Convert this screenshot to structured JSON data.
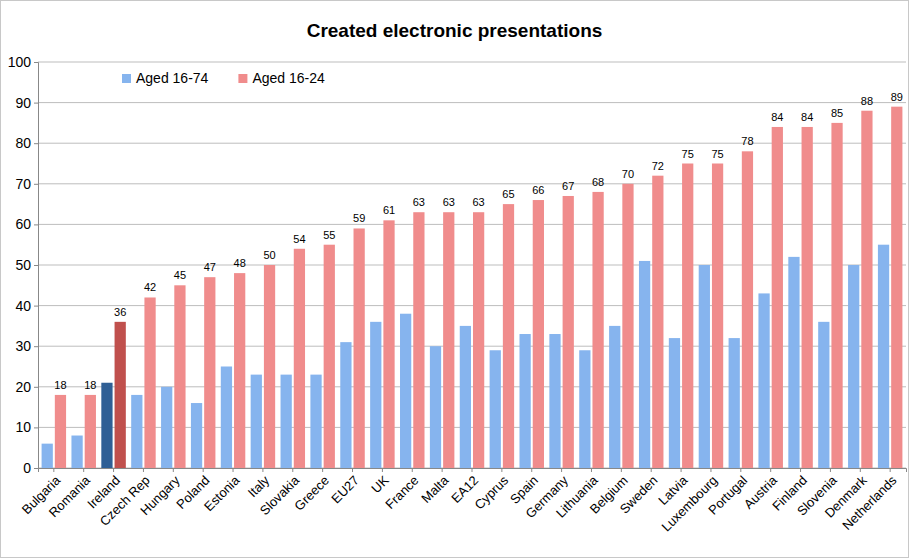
{
  "chart_data": {
    "type": "bar",
    "title": "Created electronic presentations",
    "categories": [
      "Bulgaria",
      "Romania",
      "Ireland",
      "Czech Rep",
      "Hungary",
      "Poland",
      "Estonia",
      "Italy",
      "Slovakia",
      "Greece",
      "EU27",
      "UK",
      "France",
      "Malta",
      "EA12",
      "Cyprus",
      "Spain",
      "Germany",
      "Lithuania",
      "Belgium",
      "Sweden",
      "Latvia",
      "Luxembourg",
      "Portugal",
      "Austria",
      "Finland",
      "Slovenia",
      "Denmark",
      "Netherlands"
    ],
    "series": [
      {
        "name": "Aged 16-74",
        "color": "#86b4ee",
        "colors": [
          "#86b4ee",
          "#86b4ee",
          "#2f5f95",
          "#86b4ee",
          "#86b4ee",
          "#86b4ee",
          "#86b4ee",
          "#86b4ee",
          "#86b4ee",
          "#86b4ee",
          "#86b4ee",
          "#86b4ee",
          "#86b4ee",
          "#86b4ee",
          "#86b4ee",
          "#86b4ee",
          "#86b4ee",
          "#86b4ee",
          "#86b4ee",
          "#86b4ee",
          "#86b4ee",
          "#86b4ee",
          "#86b4ee",
          "#86b4ee",
          "#86b4ee",
          "#86b4ee",
          "#86b4ee",
          "#86b4ee",
          "#86b4ee"
        ],
        "values": [
          6,
          8,
          21,
          18,
          20,
          16,
          25,
          23,
          23,
          23,
          31,
          36,
          38,
          30,
          35,
          29,
          33,
          33,
          29,
          35,
          51,
          32,
          50,
          32,
          43,
          52,
          36,
          50,
          55
        ]
      },
      {
        "name": "Aged 16-24",
        "color": "#f08c8c",
        "data_labels": true,
        "colors": [
          "#f08c8c",
          "#f08c8c",
          "#c0504d",
          "#f08c8c",
          "#f08c8c",
          "#f08c8c",
          "#f08c8c",
          "#f08c8c",
          "#f08c8c",
          "#f08c8c",
          "#f08c8c",
          "#f08c8c",
          "#f08c8c",
          "#f08c8c",
          "#f08c8c",
          "#f08c8c",
          "#f08c8c",
          "#f08c8c",
          "#f08c8c",
          "#f08c8c",
          "#f08c8c",
          "#f08c8c",
          "#f08c8c",
          "#f08c8c",
          "#f08c8c",
          "#f08c8c",
          "#f08c8c",
          "#f08c8c",
          "#f08c8c"
        ],
        "values": [
          18,
          18,
          36,
          42,
          45,
          47,
          48,
          50,
          54,
          55,
          59,
          61,
          63,
          63,
          63,
          65,
          66,
          67,
          68,
          70,
          72,
          75,
          75,
          78,
          84,
          84,
          85,
          88,
          89
        ]
      }
    ],
    "ylim": [
      0,
      100
    ],
    "yticks": [
      0,
      10,
      20,
      30,
      40,
      50,
      60,
      70,
      80,
      90,
      100
    ],
    "grid": true,
    "legend": "upper left"
  }
}
